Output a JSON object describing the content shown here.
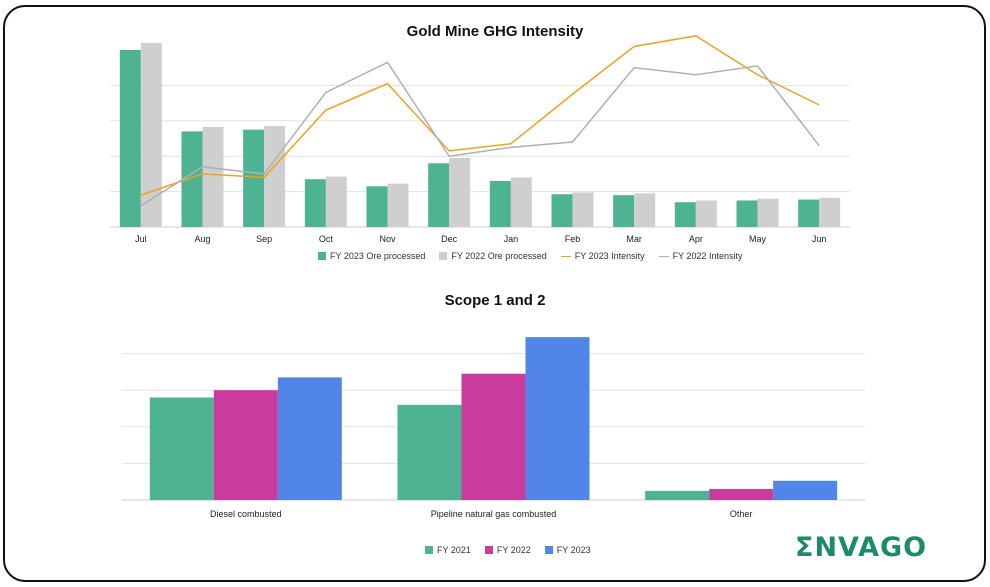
{
  "colors": {
    "fy2023_ore": "#4db393",
    "fy2022_ore": "#cfcfcf",
    "fy2023_intensity": "#f0a21f",
    "fy2022_intensity": "#b0b0b0",
    "fy2021": "#4db393",
    "fy2022": "#c93b9c",
    "fy2023": "#5285e8",
    "grid": "#e3e3e3",
    "logo": "#1f8a6a"
  },
  "logo": {
    "text": "ΣNVAGO"
  },
  "chart_data": [
    {
      "type": "bar",
      "title": "Gold Mine GHG Intensity",
      "categories": [
        "Jul",
        "Aug",
        "Sep",
        "Oct",
        "Nov",
        "Dec",
        "Jan",
        "Feb",
        "Mar",
        "Apr",
        "May",
        "Jun"
      ],
      "ylim": [
        0,
        100
      ],
      "series": [
        {
          "name": "FY 2023 Ore processed",
          "kind": "bar",
          "values": [
            100,
            54,
            55,
            27,
            23,
            36,
            26,
            18.5,
            18,
            14,
            15,
            15.5
          ]
        },
        {
          "name": "FY 2022 Ore processed",
          "kind": "bar",
          "values": [
            104,
            56.5,
            57,
            28.5,
            24.5,
            39,
            28,
            19.5,
            19,
            15,
            16,
            16.5
          ]
        }
      ],
      "line_series": [
        {
          "name": "FY 2023 Intensity",
          "kind": "line",
          "values": [
            18,
            30,
            28,
            66,
            81,
            43,
            47,
            75,
            102,
            108,
            86,
            69
          ]
        },
        {
          "name": "FY 2022 Intensity",
          "kind": "line",
          "values": [
            12,
            34,
            30,
            76,
            93,
            40,
            45,
            48,
            90,
            86,
            91,
            46
          ]
        }
      ],
      "legend": [
        "FY 2023 Ore processed",
        "FY 2022 Ore processed",
        "FY 2023 Intensity",
        "FY 2022 Intensity"
      ],
      "legend_position": "bottom"
    },
    {
      "type": "bar",
      "title": "Scope 1 and 2",
      "categories": [
        "Diesel combusted",
        "Pipeline natural gas combusted",
        "Other"
      ],
      "ylim": [
        0,
        100
      ],
      "series": [
        {
          "name": "FY 2021",
          "values": [
            56,
            52,
            5
          ]
        },
        {
          "name": "FY 2022",
          "values": [
            60,
            69,
            6
          ]
        },
        {
          "name": "FY 2023",
          "values": [
            67,
            89,
            10.5
          ]
        }
      ],
      "legend_position": "bottom"
    }
  ]
}
